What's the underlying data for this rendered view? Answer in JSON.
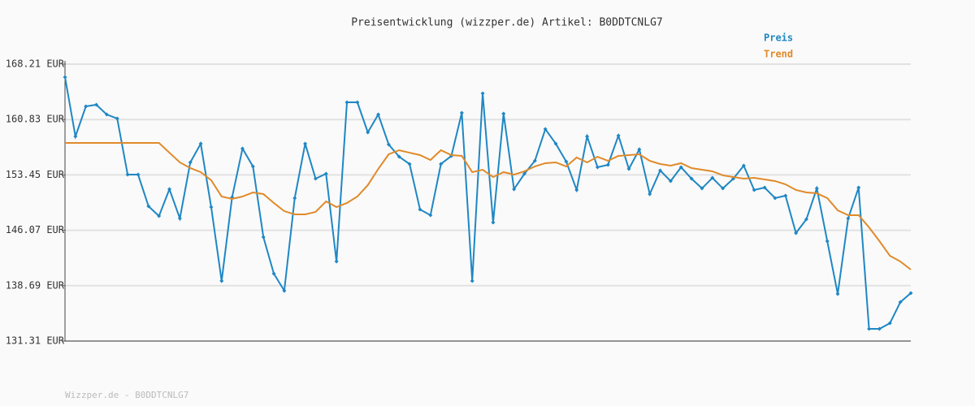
{
  "chart_data": {
    "type": "line",
    "title": "Preisentwicklung (wizzper.de) Artikel: B0DDTCNLG7",
    "footer": "Wizzper.de - B0DDTCNLG7",
    "ylim": [
      131.31,
      168.21
    ],
    "yticks": [
      {
        "value": 168.21,
        "label": "168.21 EUR"
      },
      {
        "value": 160.83,
        "label": "160.83 EUR"
      },
      {
        "value": 153.45,
        "label": "153.45 EUR"
      },
      {
        "value": 146.07,
        "label": "146.07 EUR"
      },
      {
        "value": 138.69,
        "label": "138.69 EUR"
      },
      {
        "value": 131.31,
        "label": "131.31 EUR"
      }
    ],
    "grid": true,
    "legend": "top-right",
    "series": [
      {
        "name": "Preis",
        "color": "#1f87c4",
        "markers": true,
        "values": [
          166.48,
          158.58,
          162.58,
          162.8,
          161.5,
          160.96,
          153.49,
          153.49,
          149.27,
          147.97,
          151.55,
          147.65,
          155.12,
          157.61,
          149.16,
          139.32,
          150.46,
          156.96,
          154.58,
          145.16,
          140.29,
          138.02,
          150.36,
          157.61,
          152.95,
          153.6,
          141.91,
          163.12,
          163.12,
          159.12,
          161.5,
          157.5,
          155.87,
          154.9,
          148.84,
          148.08,
          154.9,
          155.98,
          161.72,
          139.32,
          164.31,
          147.11,
          161.61,
          151.55,
          153.6,
          155.33,
          159.55,
          157.61,
          155.22,
          151.44,
          158.58,
          154.47,
          154.79,
          158.69,
          154.25,
          156.85,
          150.9,
          154.03,
          152.63,
          154.47,
          152.95,
          151.65,
          153.06,
          151.65,
          152.95,
          154.68,
          151.44,
          151.76,
          150.36,
          150.68,
          145.7,
          147.54,
          151.65,
          144.62,
          137.59,
          147.65,
          151.76,
          132.93,
          132.93,
          133.69,
          136.5,
          137.69
        ]
      },
      {
        "name": "Trend",
        "color": "#e08a2a",
        "markers": false,
        "values": [
          157.71,
          157.71,
          157.71,
          157.71,
          157.71,
          157.71,
          157.71,
          157.71,
          157.71,
          157.71,
          156.41,
          155.12,
          154.36,
          153.82,
          152.74,
          150.57,
          150.25,
          150.57,
          151.11,
          150.9,
          149.71,
          148.62,
          148.19,
          148.19,
          148.52,
          149.92,
          149.16,
          149.71,
          150.57,
          152.09,
          154.25,
          156.2,
          156.74,
          156.41,
          156.09,
          155.44,
          156.74,
          156.09,
          155.98,
          153.82,
          154.14,
          153.17,
          153.82,
          153.49,
          153.93,
          154.58,
          155.01,
          155.12,
          154.58,
          155.77,
          155.12,
          155.87,
          155.33,
          155.98,
          156.09,
          156.2,
          155.33,
          154.9,
          154.68,
          155.01,
          154.36,
          154.14,
          153.93,
          153.39,
          153.17,
          152.95,
          153.06,
          152.84,
          152.63,
          152.19,
          151.44,
          151.11,
          151.0,
          150.36,
          148.73,
          148.08,
          148.08,
          146.46,
          144.62,
          142.67,
          141.91,
          140.83
        ]
      }
    ]
  }
}
